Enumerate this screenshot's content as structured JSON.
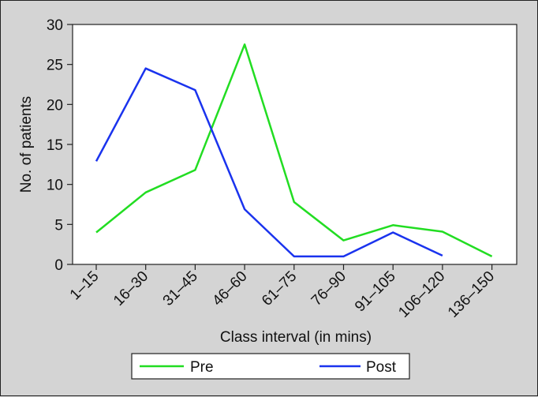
{
  "chart_data": {
    "type": "line",
    "categories": [
      "1–15",
      "16–30",
      "31–45",
      "46–60",
      "61–75",
      "76–90",
      "91–105",
      "106–120",
      "136–150"
    ],
    "series": [
      {
        "name": "Pre",
        "color": "#22dd22",
        "values": [
          4,
          9,
          11.8,
          27.5,
          7.8,
          3,
          4.9,
          4.1,
          1
        ]
      },
      {
        "name": "Post",
        "color": "#1a33ee",
        "values": [
          12.9,
          24.5,
          21.8,
          6.9,
          1,
          1,
          4,
          1.1,
          null
        ]
      }
    ],
    "xlabel": "Class interval (in mins)",
    "ylabel": "No. of patients",
    "ylim": [
      0,
      30
    ],
    "yticks": [
      0,
      5,
      10,
      15,
      20,
      25,
      30
    ],
    "grid": false,
    "legend_position": "bottom"
  }
}
